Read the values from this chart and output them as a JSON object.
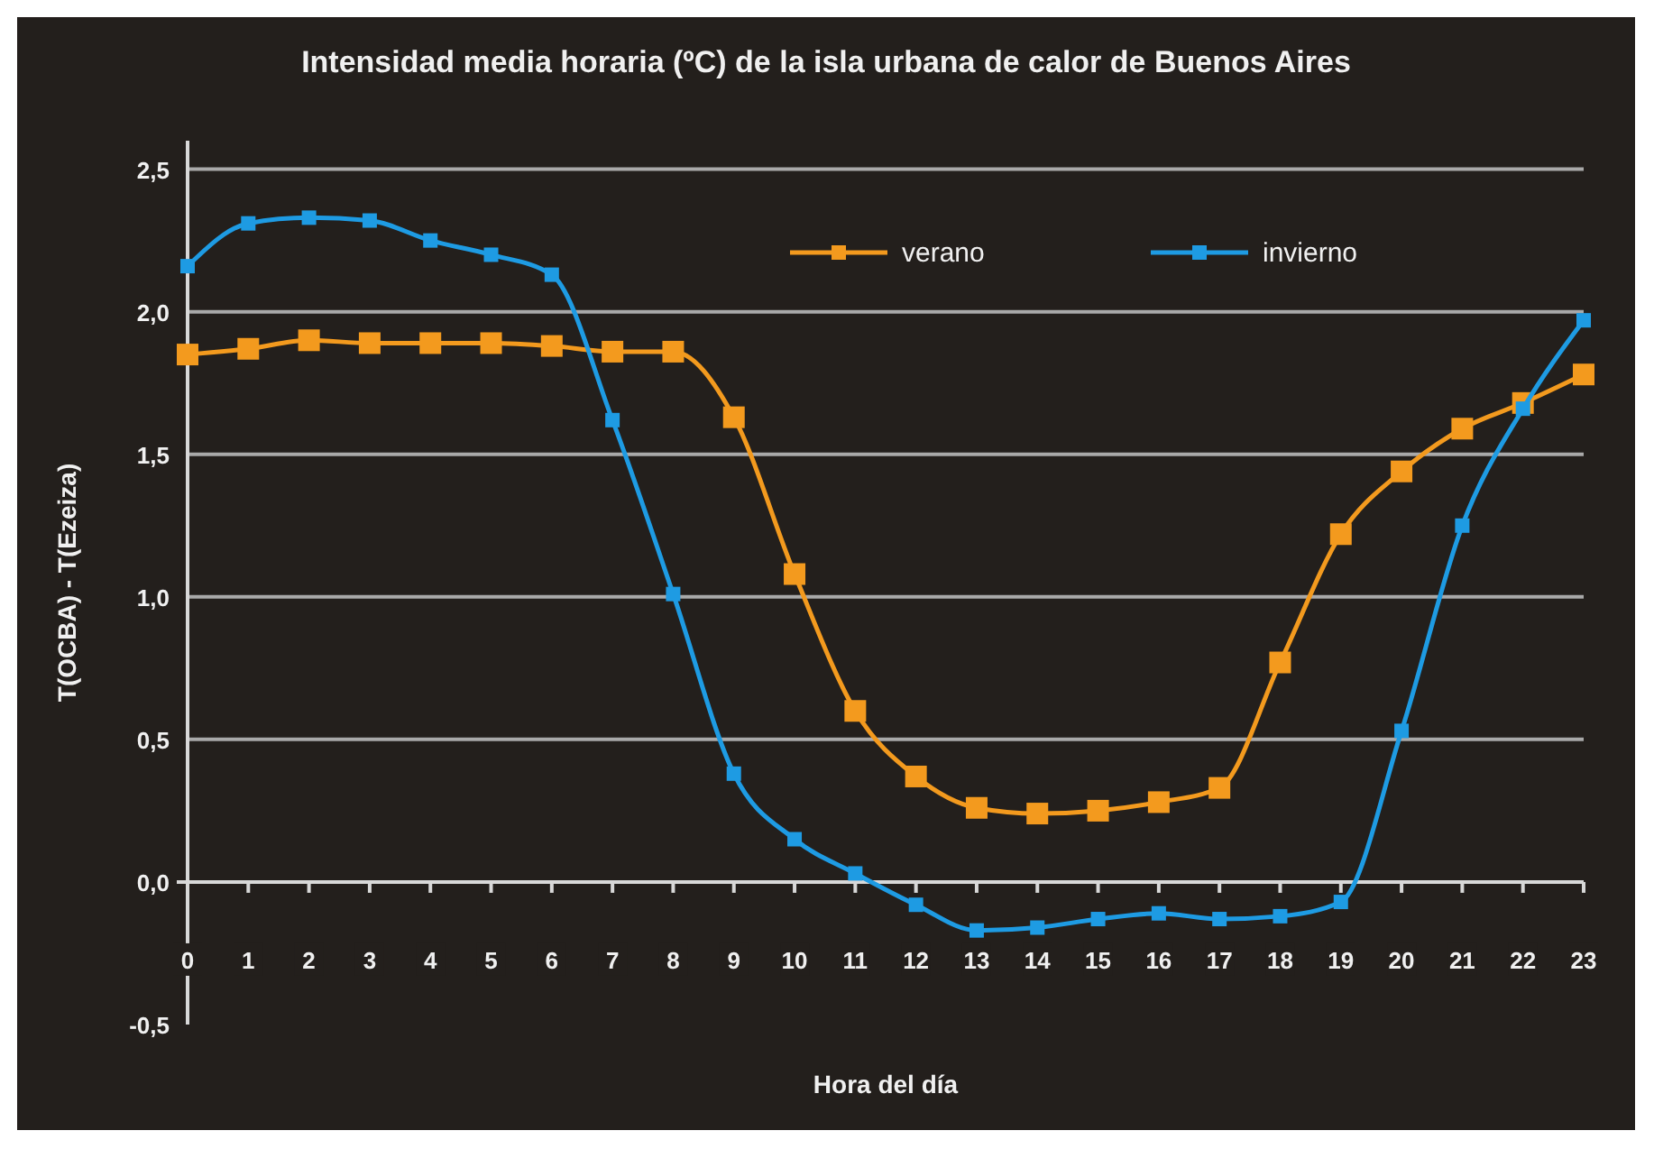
{
  "chart_data": {
    "type": "line",
    "title": "Intensidad media horaria (ºC) de la isla urbana de calor de Buenos Aires",
    "xlabel": "Hora del día",
    "ylabel": "T(OCBA) - T(Ezeiza)",
    "x": [
      0,
      1,
      2,
      3,
      4,
      5,
      6,
      7,
      8,
      9,
      10,
      11,
      12,
      13,
      14,
      15,
      16,
      17,
      18,
      19,
      20,
      21,
      22,
      23
    ],
    "series": [
      {
        "name": "verano",
        "color": "#f39a1e",
        "values": [
          1.85,
          1.87,
          1.9,
          1.89,
          1.89,
          1.89,
          1.88,
          1.86,
          1.86,
          1.63,
          1.08,
          0.6,
          0.37,
          0.26,
          0.24,
          0.25,
          0.28,
          0.33,
          0.77,
          1.22,
          1.44,
          1.59,
          1.68,
          1.78
        ]
      },
      {
        "name": "invierno",
        "color": "#1e9be3",
        "values": [
          2.16,
          2.31,
          2.33,
          2.32,
          2.25,
          2.2,
          2.13,
          1.62,
          1.01,
          0.38,
          0.15,
          0.03,
          -0.08,
          -0.17,
          -0.16,
          -0.13,
          -0.11,
          -0.13,
          -0.12,
          -0.07,
          0.53,
          1.25,
          1.66,
          1.97
        ]
      }
    ],
    "xlim": [
      0,
      23
    ],
    "xticks": [
      0,
      1,
      2,
      3,
      4,
      5,
      6,
      7,
      8,
      9,
      10,
      11,
      12,
      13,
      14,
      15,
      16,
      17,
      18,
      19,
      20,
      21,
      22,
      23
    ],
    "ylim": [
      -0.5,
      2.6
    ],
    "yticks": [
      {
        "value": -0.5,
        "label": "-0,5"
      },
      {
        "value": 0,
        "label": "0,0"
      },
      {
        "value": 0.5,
        "label": "0,5"
      },
      {
        "value": 1,
        "label": "1,0"
      },
      {
        "value": 1.5,
        "label": "1,5"
      },
      {
        "value": 2,
        "label": "2,0"
      },
      {
        "value": 2.5,
        "label": "2,5"
      }
    ],
    "grid": "y",
    "legend": "top right",
    "marker": "square",
    "line_style": "solid"
  }
}
